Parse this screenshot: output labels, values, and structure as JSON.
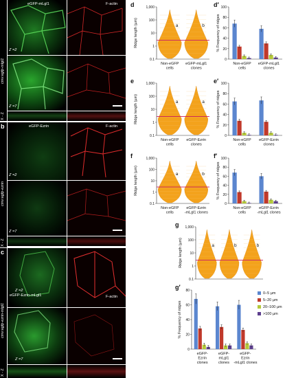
{
  "panels": {
    "a": {
      "label": "a",
      "row_label": "cmv:egfp-mlgl1",
      "green_title": "eGFP-mLgl1",
      "red_title": "F-actin",
      "z_top": "Z =2",
      "z_bottom": "Z =7",
      "xz": "X - Z"
    },
    "b": {
      "label": "b",
      "row_label": "cmv:egfp-ezrin",
      "green_title": "eGFP-Ezrin",
      "red_title": "F-actin",
      "z_top": "Z =2",
      "z_bottom": "Z =7",
      "xz": "X - Z"
    },
    "c": {
      "label": "c",
      "row_label": "cmv:egfp-ezrin-mlgl1",
      "green_title": "eGFP-Ezrin-mLgl1",
      "red_title": "F-actin",
      "z_top": "Z =2",
      "z_bottom": "Z =7",
      "xz": "X - Z"
    }
  },
  "colors": {
    "green": "#39c93a",
    "red": "#e8262c",
    "violin": "#f3a21c",
    "mean_line": "#c8185a",
    "s0_5": "#5b86cf",
    "s5_20": "#c0392b",
    "s20_100": "#b5c93a",
    "s100": "#5d3f8e"
  },
  "chart_data": [
    {
      "id": "d",
      "type": "violin",
      "ylabel": "Ridge length (µm)",
      "yticks": [
        "1,000",
        "100",
        "10",
        "1",
        "0.1"
      ],
      "categories": [
        "Non-eGFP\ncells",
        "eGFP-mLgl1\nclones"
      ],
      "annotations": [
        "a",
        "b"
      ]
    },
    {
      "id": "d_prime",
      "type": "bar",
      "ylabel": "% Frequency of ridges",
      "ylim": [
        0,
        100
      ],
      "yticks": [
        "100",
        "80",
        "60",
        "40",
        "20",
        "0"
      ],
      "categories": [
        "Non-eGFP\ncells",
        "eGFP-mLgl1\nclones"
      ],
      "series": [
        {
          "name": "0–5 µm",
          "values": [
            68,
            58
          ]
        },
        {
          "name": "5–20 µm",
          "values": [
            24,
            30
          ]
        },
        {
          "name": "20–100 µm",
          "values": [
            6,
            8
          ]
        },
        {
          "name": ">100 µm",
          "values": [
            2,
            3
          ]
        }
      ]
    },
    {
      "id": "e",
      "type": "violin",
      "ylabel": "Ridge length (µm)",
      "yticks": [
        "1,000",
        "100",
        "10",
        "1",
        "0.1"
      ],
      "categories": [
        "Non-eGFP\ncells",
        "eGFP-Ezrin\nclones"
      ],
      "annotations": [
        "a",
        "a"
      ]
    },
    {
      "id": "e_prime",
      "type": "bar",
      "ylabel": "% Frequency of ridges",
      "ylim": [
        0,
        100
      ],
      "yticks": [
        "100",
        "80",
        "60",
        "40",
        "20",
        "0"
      ],
      "categories": [
        "Non-eGFP\ncells",
        "eGFP-Ezrin\nclones"
      ],
      "series": [
        {
          "name": "0–5 µm",
          "values": [
            65,
            67
          ]
        },
        {
          "name": "5–20 µm",
          "values": [
            28,
            26
          ]
        },
        {
          "name": "20–100 µm",
          "values": [
            5,
            5
          ]
        },
        {
          "name": ">100 µm",
          "values": [
            1,
            1
          ]
        }
      ]
    },
    {
      "id": "f",
      "type": "violin",
      "ylabel": "Ridge length (µm)",
      "yticks": [
        "1,000",
        "100",
        "10",
        "1",
        "0.1"
      ],
      "categories": [
        "Non-eGFP\ncells",
        "eGFP-Ezrin\n-mLgl1 clones"
      ],
      "annotations": [
        "a",
        "b"
      ]
    },
    {
      "id": "f_prime",
      "type": "bar",
      "ylabel": "% Frequency of ridges",
      "ylim": [
        0,
        100
      ],
      "yticks": [
        "100",
        "80",
        "60",
        "40",
        "20",
        "0"
      ],
      "categories": [
        "Non-eGFP\ncells",
        "eGFP-Ezrin\n-mLgl1 clones"
      ],
      "series": [
        {
          "name": "0–5 µm",
          "values": [
            68,
            60
          ]
        },
        {
          "name": "5–20 µm",
          "values": [
            25,
            26
          ]
        },
        {
          "name": "20–100 µm",
          "values": [
            5,
            8
          ]
        },
        {
          "name": ">100 µm",
          "values": [
            1,
            5
          ]
        }
      ]
    },
    {
      "id": "g",
      "type": "violin",
      "ylabel": "Ridge length (µm)",
      "yticks": [
        "1,000",
        "100",
        "10",
        "1",
        "0.1"
      ],
      "categories": [
        "",
        "",
        ""
      ],
      "annotations": [
        "a",
        "b",
        "b"
      ]
    },
    {
      "id": "g_prime",
      "type": "bar",
      "ylabel": "% Frequency of ridges",
      "ylim": [
        0,
        80
      ],
      "yticks": [
        "80",
        "60",
        "40",
        "20",
        "0"
      ],
      "categories": [
        "eGFP-\nEzrin\nclones",
        "eGFP-\nmLgl1\nclones",
        "eGFP-\nEzrin\n-mLgl1 clones"
      ],
      "legend_position": "top-right",
      "series": [
        {
          "name": "0–5 µm",
          "values": [
            68,
            58,
            60
          ]
        },
        {
          "name": "5–20 µm",
          "values": [
            28,
            30,
            26
          ]
        },
        {
          "name": "20–100 µm",
          "values": [
            6,
            5,
            8
          ]
        },
        {
          "name": ">100 µm",
          "values": [
            3,
            5,
            5
          ]
        }
      ]
    }
  ]
}
